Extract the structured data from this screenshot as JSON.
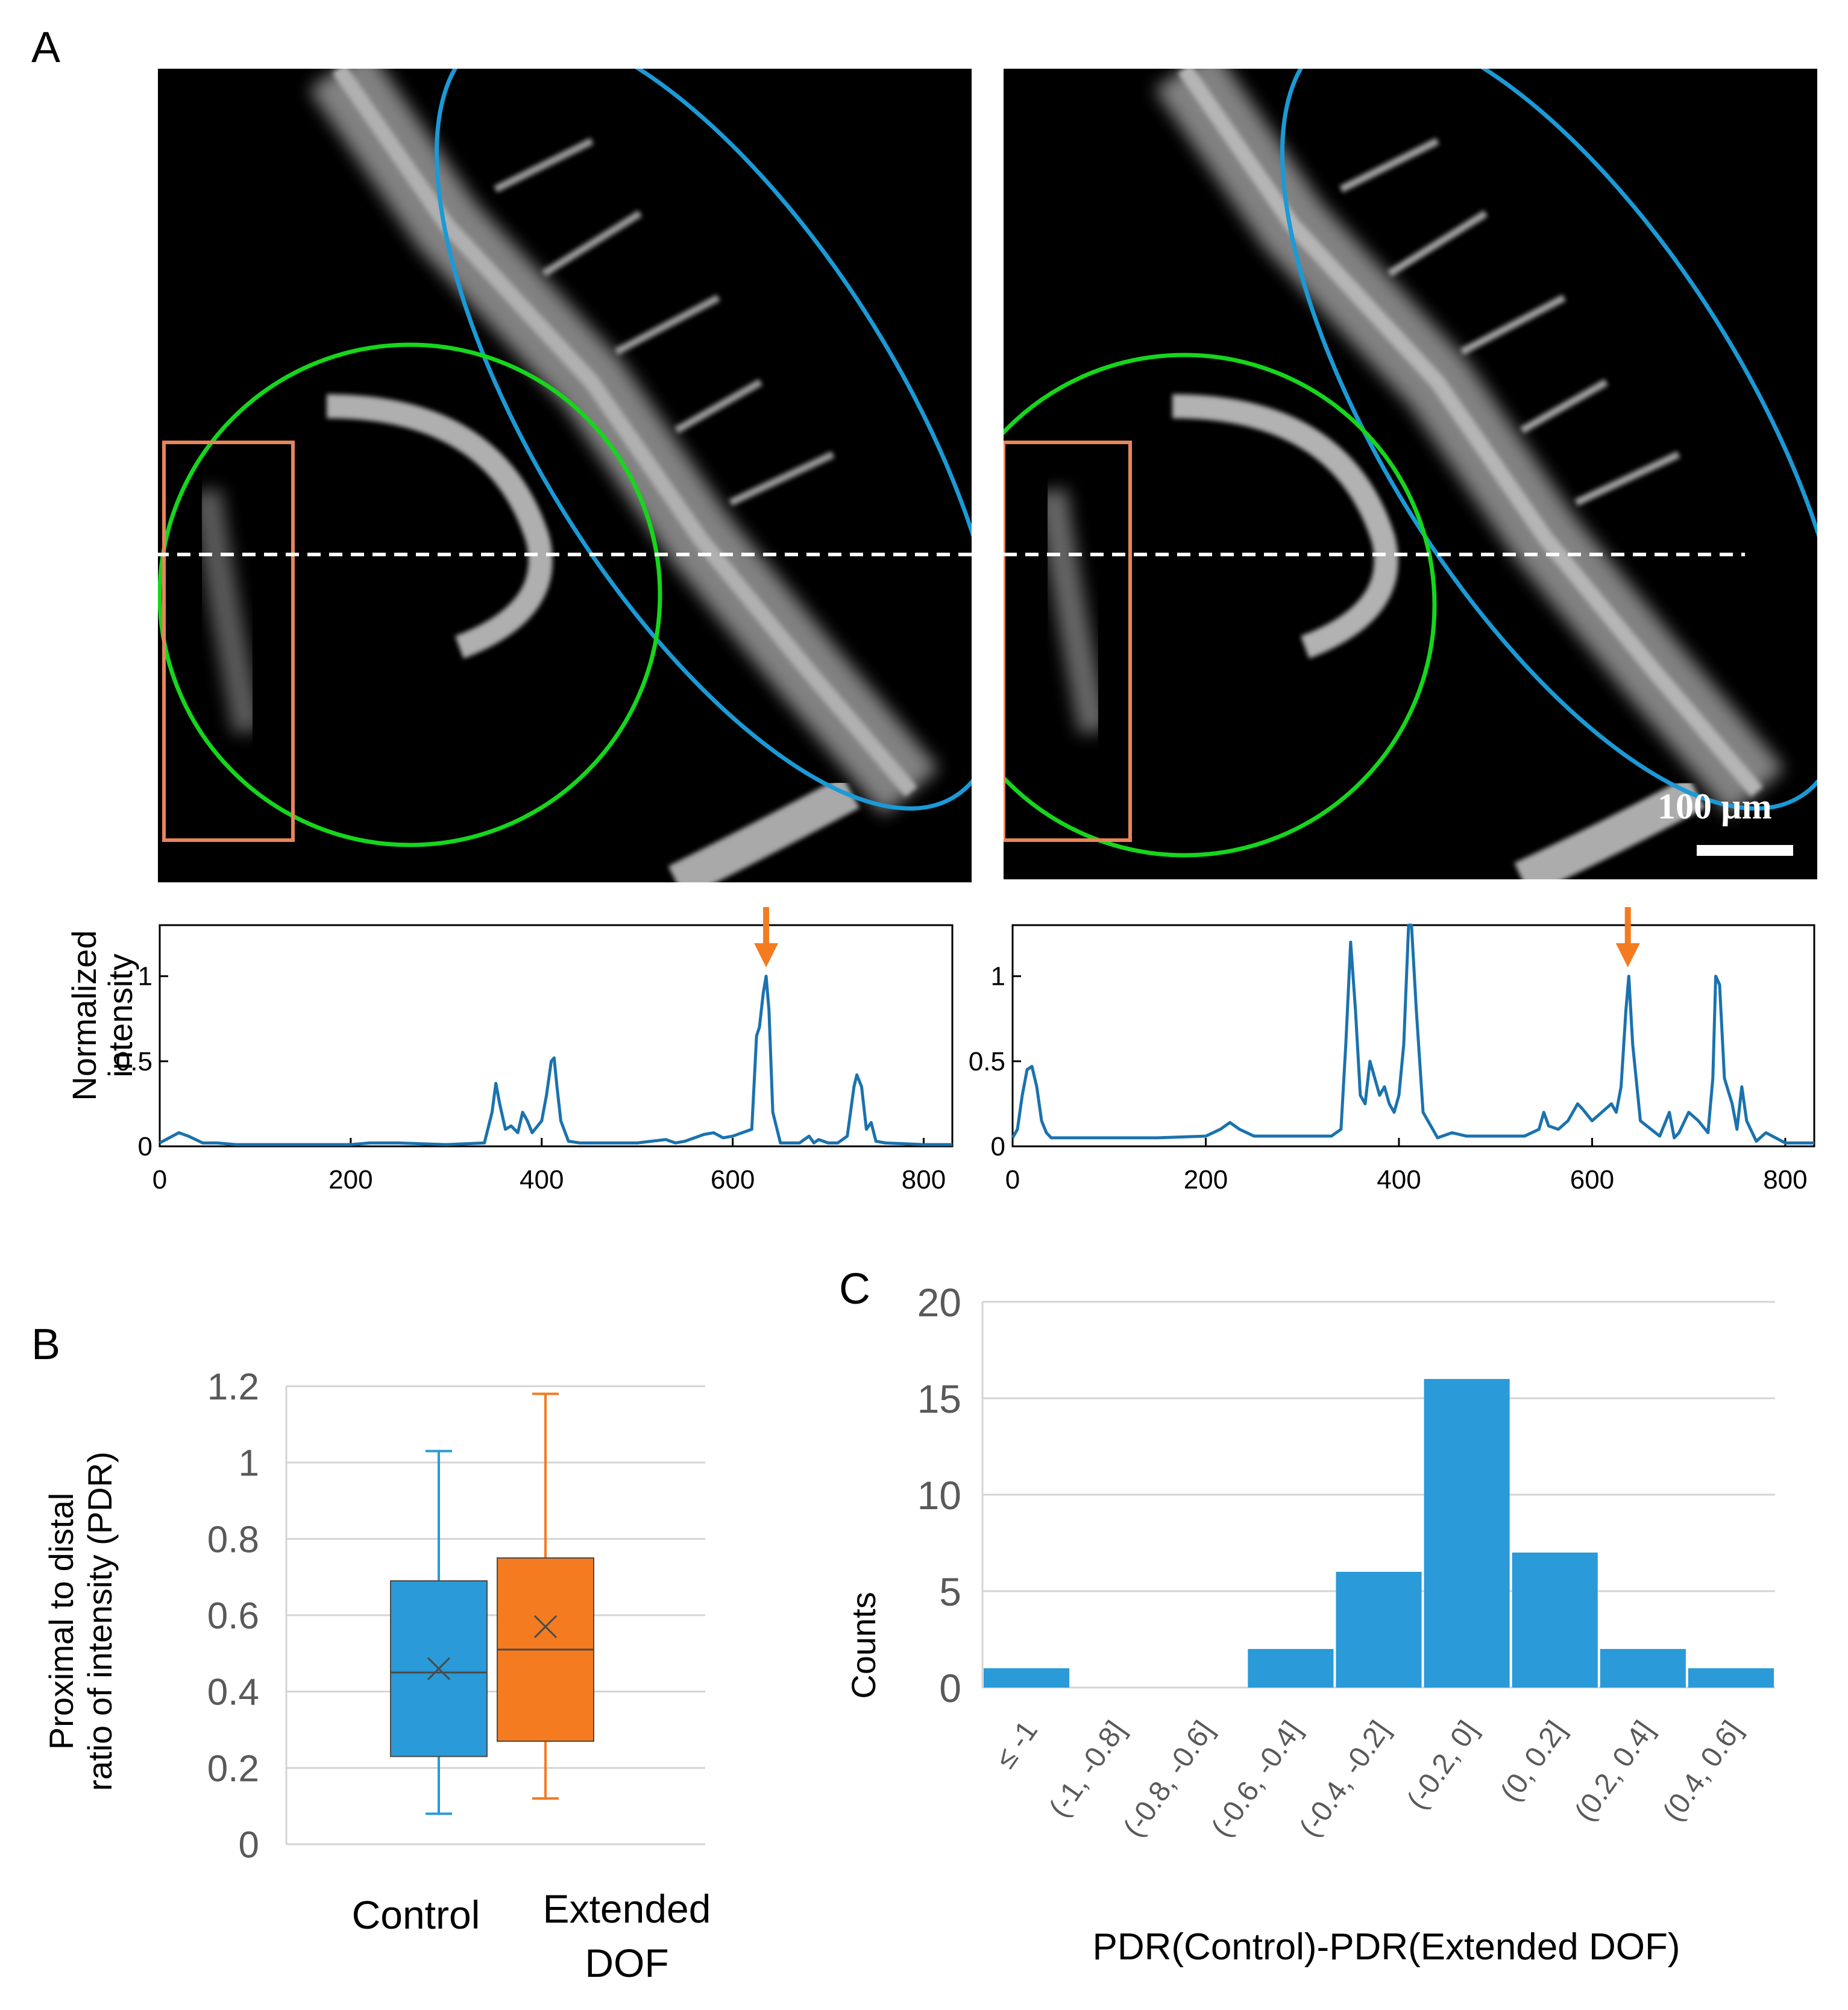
{
  "panels": {
    "a": "A",
    "b": "B",
    "c": "C"
  },
  "micrographs": {
    "scale_bar_label": "100 µm",
    "colors": {
      "ellipse": "#1a9ad6",
      "circle": "#16d61c",
      "rect": "#e8845a",
      "dashed_line": "#ffffff"
    }
  },
  "chart_data": [
    {
      "type": "line",
      "panel": "A-left",
      "ylabel_line1": "Normalized",
      "ylabel_line2": "intensity",
      "xlim": [
        0,
        830
      ],
      "ylim": [
        0,
        1.3
      ],
      "xticks": [
        "0",
        "200",
        "400",
        "600",
        "800"
      ],
      "xtick_values": [
        0,
        200,
        400,
        600,
        800
      ],
      "yticks": [
        "0",
        "0.5",
        "1"
      ],
      "ytick_values": [
        0,
        0.5,
        1
      ],
      "arrow_x": 635,
      "color": "#1a72ae",
      "arrow_color": "#f47b20",
      "x": [
        0,
        10,
        20,
        30,
        45,
        60,
        80,
        100,
        150,
        200,
        220,
        250,
        300,
        340,
        348,
        352,
        356,
        362,
        368,
        375,
        380,
        385,
        390,
        400,
        405,
        410,
        413,
        416,
        420,
        428,
        440,
        470,
        500,
        530,
        540,
        550,
        570,
        580,
        590,
        600,
        610,
        620,
        625,
        628,
        632,
        635,
        638,
        642,
        650,
        670,
        680,
        685,
        690,
        700,
        710,
        720,
        727,
        730,
        735,
        740,
        745,
        750,
        760,
        800,
        830
      ],
      "y": [
        0.02,
        0.05,
        0.08,
        0.06,
        0.02,
        0.02,
        0.01,
        0.01,
        0.01,
        0.01,
        0.02,
        0.02,
        0.01,
        0.02,
        0.2,
        0.37,
        0.25,
        0.1,
        0.12,
        0.08,
        0.2,
        0.15,
        0.08,
        0.15,
        0.3,
        0.5,
        0.52,
        0.35,
        0.15,
        0.03,
        0.02,
        0.02,
        0.02,
        0.04,
        0.02,
        0.03,
        0.07,
        0.08,
        0.05,
        0.06,
        0.08,
        0.1,
        0.65,
        0.7,
        0.9,
        1.0,
        0.8,
        0.2,
        0.02,
        0.02,
        0.06,
        0.02,
        0.04,
        0.02,
        0.02,
        0.06,
        0.35,
        0.42,
        0.35,
        0.1,
        0.14,
        0.03,
        0.02,
        0.01,
        0.01
      ]
    },
    {
      "type": "line",
      "panel": "A-right",
      "xlim": [
        0,
        830
      ],
      "ylim": [
        0,
        1.3
      ],
      "xticks": [
        "0",
        "200",
        "400",
        "600",
        "800"
      ],
      "xtick_values": [
        0,
        200,
        400,
        600,
        800
      ],
      "yticks": [
        "0",
        "0.5",
        "1"
      ],
      "ytick_values": [
        0,
        0.5,
        1
      ],
      "arrow_x": 637,
      "color": "#1a72ae",
      "arrow_color": "#f47b20",
      "x": [
        0,
        5,
        10,
        15,
        20,
        25,
        30,
        35,
        40,
        50,
        80,
        120,
        150,
        200,
        215,
        225,
        235,
        250,
        270,
        300,
        330,
        340,
        345,
        350,
        355,
        360,
        365,
        370,
        375,
        380,
        385,
        390,
        395,
        400,
        405,
        410,
        413,
        418,
        425,
        440,
        455,
        470,
        500,
        530,
        545,
        550,
        555,
        565,
        575,
        585,
        590,
        600,
        610,
        620,
        625,
        630,
        635,
        638,
        642,
        650,
        670,
        680,
        685,
        690,
        700,
        710,
        720,
        725,
        728,
        732,
        737,
        745,
        750,
        755,
        760,
        770,
        780,
        800,
        830
      ],
      "y": [
        0.05,
        0.1,
        0.3,
        0.45,
        0.47,
        0.35,
        0.15,
        0.08,
        0.05,
        0.05,
        0.05,
        0.05,
        0.05,
        0.06,
        0.1,
        0.14,
        0.1,
        0.06,
        0.06,
        0.06,
        0.06,
        0.1,
        0.6,
        1.2,
        0.8,
        0.3,
        0.25,
        0.5,
        0.4,
        0.3,
        0.35,
        0.25,
        0.2,
        0.3,
        0.6,
        1.3,
        1.3,
        0.8,
        0.2,
        0.05,
        0.08,
        0.06,
        0.06,
        0.06,
        0.1,
        0.2,
        0.12,
        0.1,
        0.15,
        0.25,
        0.22,
        0.15,
        0.2,
        0.25,
        0.2,
        0.35,
        0.8,
        1.0,
        0.6,
        0.15,
        0.06,
        0.2,
        0.05,
        0.08,
        0.2,
        0.15,
        0.08,
        0.4,
        1.0,
        0.95,
        0.4,
        0.25,
        0.1,
        0.35,
        0.15,
        0.03,
        0.08,
        0.02,
        0.02
      ]
    },
    {
      "type": "box",
      "panel": "B",
      "ylabel_line1": "Proximal to distal",
      "ylabel_line2": "ratio of intensity (PDR)",
      "ylim": [
        0,
        1.2
      ],
      "yticks": [
        "0",
        "0.2",
        "0.4",
        "0.6",
        "0.8",
        "1",
        "1.2"
      ],
      "ytick_values": [
        0,
        0.2,
        0.4,
        0.6,
        0.8,
        1.0,
        1.2
      ],
      "grid": true,
      "categories": [
        "Control",
        "Extended DOF"
      ],
      "boxes": [
        {
          "label": "Control",
          "min": 0.08,
          "q1": 0.23,
          "median": 0.45,
          "q3": 0.69,
          "max": 1.03,
          "mean": 0.46,
          "color": "#2a9ad8"
        },
        {
          "label_line1": "Extended",
          "label_line2": "DOF",
          "min": 0.12,
          "q1": 0.27,
          "median": 0.51,
          "q3": 0.75,
          "max": 1.18,
          "mean": 0.57,
          "color": "#f47b20"
        }
      ]
    },
    {
      "type": "bar",
      "panel": "C",
      "ylabel": "Counts",
      "xlabel": "PDR(Control)-PDR(Extended DOF)",
      "ylim": [
        0,
        20
      ],
      "yticks": [
        "0",
        "5",
        "10",
        "15",
        "20"
      ],
      "ytick_values": [
        0,
        5,
        10,
        15,
        20
      ],
      "grid": true,
      "color": "#2a9ad8",
      "categories": [
        "≤ -1",
        "(-1, -0.8]",
        "(-0.8, -0.6]",
        "(-0.6, -0.4]",
        "(-0.4, -0.2]",
        "(-0.2, 0]",
        "(0, 0.2]",
        "(0.2, 0.4]",
        "(0.4, 0.6]"
      ],
      "values": [
        1,
        0,
        0,
        2,
        6,
        16,
        7,
        2,
        1
      ]
    }
  ]
}
